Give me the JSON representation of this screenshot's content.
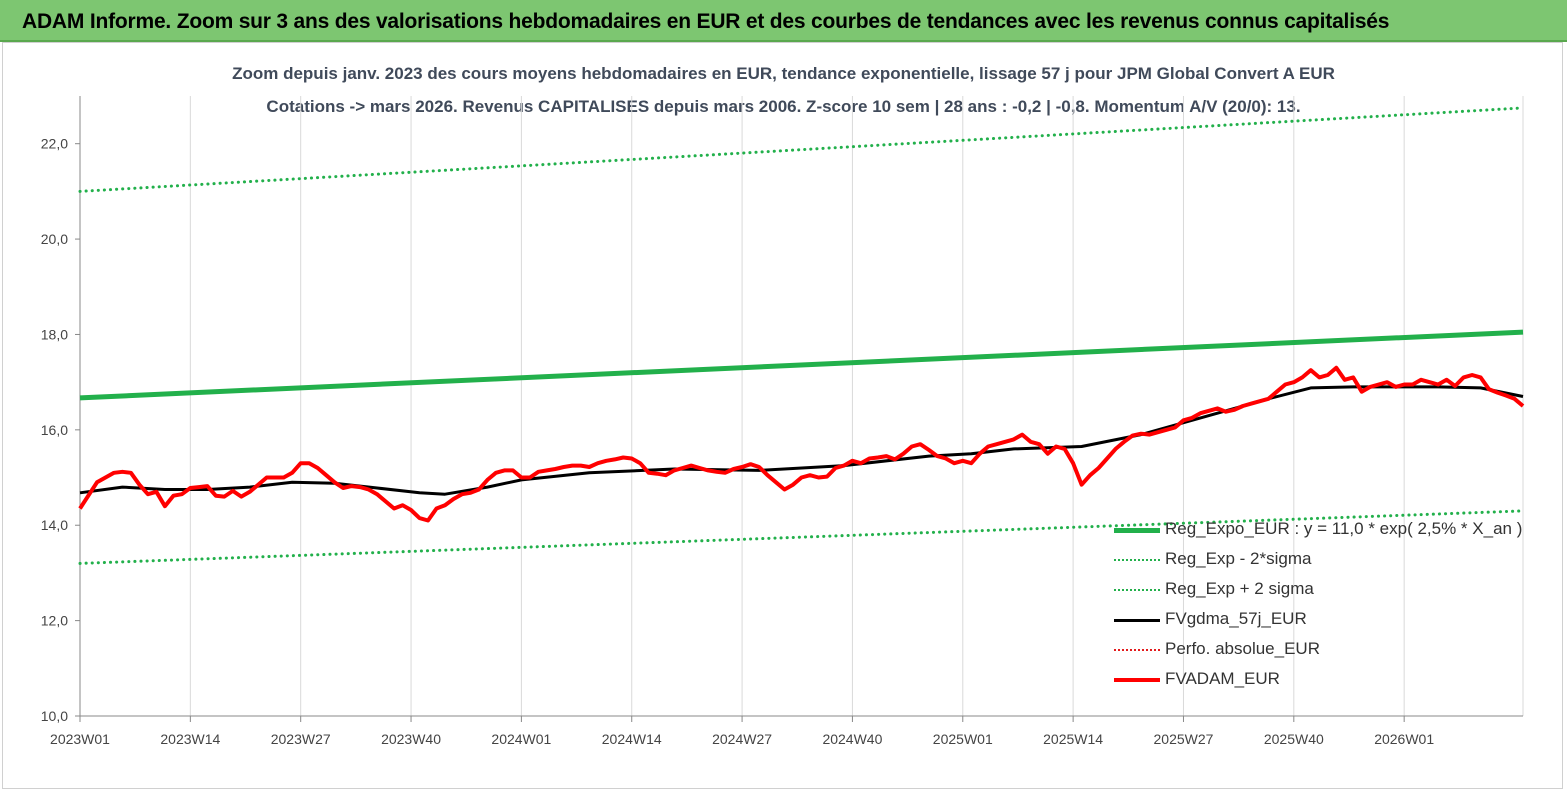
{
  "banner": {
    "title": "ADAM Informe. Zoom sur 3 ans des valorisations hebdomadaires en EUR et des courbes de tendances avec les revenus connus capitalisés"
  },
  "chart_data": {
    "type": "line",
    "title": "Zoom depuis janv. 2023 des cours moyens hebdomadaires en EUR, tendance exponentielle, lissage 57 j pour JPM Global Convert A EUR",
    "subtitle": "Cotations -> mars 2026. Revenus CAPITALISES depuis mars 2006. Z-score 10 sem | 28 ans : -0,2 | -0,8. Momentum A/V (20/0): 13.",
    "xlabel": "",
    "ylabel": "",
    "ylim": [
      10,
      23.0
    ],
    "yticks": [
      "10,0",
      "12,0",
      "14,0",
      "16,0",
      "18,0",
      "20,0",
      "22,0"
    ],
    "ytick_values": [
      10,
      12,
      14,
      16,
      18,
      20,
      22
    ],
    "xticks": [
      "2023W01",
      "2023W14",
      "2023W27",
      "2023W40",
      "2024W01",
      "2024W14",
      "2024W27",
      "2024W40",
      "2025W01",
      "2025W14",
      "2025W27",
      "2025W40",
      "2026W01"
    ],
    "xtick_weeks": [
      0,
      13,
      26,
      39,
      52,
      65,
      78,
      91,
      104,
      117,
      130,
      143,
      156
    ],
    "x_unit": "weeks since 2023W01",
    "x_last": 170,
    "grid": "vertical",
    "legend_position": "bottom-right",
    "series": [
      {
        "name": "Reg_Expo_EUR : y = 11,0 * exp( 2,5% *  X_an )",
        "color": "#22b04b",
        "style": "solid",
        "width": 5,
        "x": [
          0,
          170
        ],
        "values": [
          16.67,
          18.05
        ]
      },
      {
        "name": "Reg_Exp - 2*sigma",
        "color": "#22b04b",
        "style": "dotted",
        "width": 3,
        "x": [
          0,
          170
        ],
        "values": [
          13.2,
          14.3
        ]
      },
      {
        "name": "Reg_Exp + 2 sigma",
        "color": "#22b04b",
        "style": "dotted",
        "width": 3,
        "x": [
          0,
          170
        ],
        "values": [
          21.0,
          22.75
        ]
      },
      {
        "name": "FVgdma_57j_EUR",
        "color": "#000000",
        "style": "solid",
        "width": 3,
        "x": [
          0,
          5,
          10,
          15,
          20,
          25,
          30,
          35,
          40,
          43,
          48,
          52,
          60,
          70,
          80,
          90,
          100,
          105,
          110,
          118,
          125,
          130,
          135,
          140,
          145,
          150,
          155,
          160,
          165,
          170
        ],
        "values": [
          14.68,
          14.8,
          14.75,
          14.75,
          14.8,
          14.9,
          14.88,
          14.78,
          14.68,
          14.65,
          14.8,
          14.95,
          15.1,
          15.18,
          15.15,
          15.25,
          15.45,
          15.5,
          15.6,
          15.65,
          15.9,
          16.15,
          16.4,
          16.65,
          16.88,
          16.9,
          16.9,
          16.9,
          16.88,
          16.7
        ]
      },
      {
        "name": "Perfo. absolue_EUR",
        "color": "#e31a1c",
        "style": "dotted",
        "width": 2,
        "x": [],
        "values": []
      },
      {
        "name": "FVADAM_EUR",
        "color": "#ff0000",
        "style": "solid",
        "width": 4,
        "x": [
          0,
          2,
          4,
          5,
          6,
          7,
          8,
          9,
          10,
          11,
          12,
          13,
          14,
          15,
          16,
          17,
          18,
          19,
          20,
          21,
          22,
          23,
          24,
          25,
          26,
          27,
          28,
          29,
          30,
          31,
          32,
          33,
          34,
          35,
          36,
          37,
          38,
          39,
          40,
          41,
          42,
          43,
          44,
          45,
          46,
          47,
          48,
          49,
          50,
          51,
          52,
          53,
          54,
          55,
          56,
          57,
          58,
          59,
          60,
          61,
          62,
          63,
          64,
          65,
          66,
          67,
          68,
          69,
          70,
          71,
          72,
          73,
          74,
          75,
          76,
          77,
          78,
          79,
          80,
          81,
          82,
          83,
          84,
          85,
          86,
          87,
          88,
          89,
          90,
          91,
          92,
          93,
          94,
          95,
          96,
          97,
          98,
          99,
          100,
          101,
          102,
          103,
          104,
          105,
          106,
          107,
          108,
          109,
          110,
          111,
          112,
          113,
          114,
          115,
          116,
          117,
          118,
          119,
          120,
          121,
          122,
          123,
          124,
          125,
          126,
          127,
          128,
          129,
          130,
          131,
          132,
          133,
          134,
          135,
          136,
          137,
          138,
          139,
          140,
          141,
          142,
          143,
          144,
          145,
          146,
          147,
          148,
          149,
          150,
          151,
          152,
          153,
          154,
          155,
          156,
          157,
          158,
          159,
          160,
          161,
          162,
          163,
          164,
          165,
          166,
          167,
          168,
          169,
          170
        ],
        "values": [
          14.35,
          14.9,
          15.1,
          15.12,
          15.1,
          14.85,
          14.65,
          14.7,
          14.4,
          14.62,
          14.65,
          14.78,
          14.8,
          14.82,
          14.62,
          14.6,
          14.72,
          14.6,
          14.7,
          14.85,
          15.0,
          15.0,
          15.0,
          15.1,
          15.3,
          15.3,
          15.2,
          15.05,
          14.9,
          14.78,
          14.82,
          14.8,
          14.75,
          14.65,
          14.5,
          14.35,
          14.42,
          14.32,
          14.15,
          14.1,
          14.35,
          14.42,
          14.55,
          14.65,
          14.68,
          14.75,
          14.95,
          15.1,
          15.15,
          15.15,
          15.0,
          15.0,
          15.12,
          15.15,
          15.18,
          15.22,
          15.25,
          15.25,
          15.22,
          15.3,
          15.35,
          15.38,
          15.42,
          15.4,
          15.3,
          15.1,
          15.08,
          15.05,
          15.15,
          15.2,
          15.25,
          15.2,
          15.15,
          15.12,
          15.1,
          15.18,
          15.22,
          15.28,
          15.22,
          15.05,
          14.9,
          14.75,
          14.85,
          15.0,
          15.05,
          15.0,
          15.02,
          15.2,
          15.25,
          15.35,
          15.3,
          15.4,
          15.42,
          15.45,
          15.38,
          15.5,
          15.65,
          15.7,
          15.58,
          15.45,
          15.4,
          15.3,
          15.35,
          15.3,
          15.5,
          15.65,
          15.7,
          15.75,
          15.8,
          15.9,
          15.75,
          15.7,
          15.5,
          15.65,
          15.6,
          15.3,
          14.85,
          15.05,
          15.2,
          15.4,
          15.6,
          15.75,
          15.88,
          15.92,
          15.9,
          15.95,
          16.0,
          16.05,
          16.2,
          16.25,
          16.35,
          16.4,
          16.45,
          16.38,
          16.42,
          16.5,
          16.55,
          16.6,
          16.65,
          16.8,
          16.95,
          17.0,
          17.1,
          17.25,
          17.1,
          17.15,
          17.3,
          17.05,
          17.1,
          16.8,
          16.9,
          16.95,
          17.0,
          16.9,
          16.95,
          16.95,
          17.05,
          17.0,
          16.95,
          17.05,
          16.92,
          17.1,
          17.15,
          17.1,
          16.85,
          16.78,
          16.72,
          16.65,
          16.5
        ]
      }
    ]
  }
}
